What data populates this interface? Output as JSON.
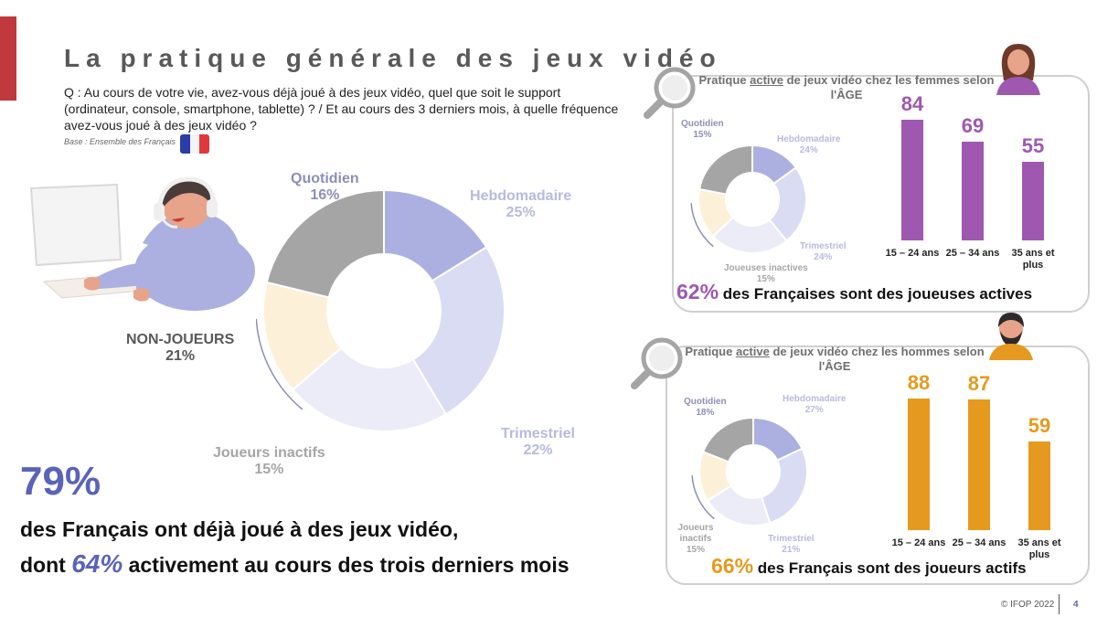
{
  "title": "La pratique générale des jeux vidéo",
  "question": "Q : Au cours de votre vie, avez-vous déjà joué à des jeux vidéo, quel que soit le support (ordinateur, console, smartphone, tablette) ? / Et au cours des 3 derniers mois, à quelle fréquence avez-vous joué à des jeux vidéo ?",
  "base": "Base : Ensemble des Français",
  "colors": {
    "accent_red": "#c0393c",
    "quotidien": "#abb0e0",
    "hebdomadaire": "#dadcf3",
    "trimestriel": "#ebecf8",
    "inactifs": "#fdf0d8",
    "non_joueurs": "#a5a5a5",
    "women": "#9e58b0",
    "men": "#e59a1f",
    "highlight": "#5a63b8"
  },
  "flag_colors": [
    "#2a3da6",
    "#f4f4f4",
    "#e0393b"
  ],
  "chart_data": [
    {
      "type": "pie",
      "id": "overall",
      "categories": [
        "Quotidien",
        "Hebdomadaire",
        "Trimestriel",
        "Joueurs inactifs",
        "NON-JOUEURS"
      ],
      "values": [
        16,
        25,
        22,
        15,
        21
      ],
      "labels": [
        "16%",
        "25%",
        "22%",
        "15%",
        "21%"
      ]
    },
    {
      "type": "pie",
      "id": "women",
      "title": "Pratique active de jeux vidéo chez les femmes selon l'ÂGE",
      "categories": [
        "Quotidien",
        "Hebdomadaire",
        "Trimestriel",
        "Joueuses inactives",
        ""
      ],
      "values": [
        15,
        24,
        24,
        15,
        22
      ],
      "labels": [
        "15%",
        "24%",
        "24%",
        "15%",
        ""
      ]
    },
    {
      "type": "bar",
      "id": "women_bars",
      "categories": [
        "15 – 24 ans",
        "25 – 34 ans",
        "35 ans et plus"
      ],
      "values": [
        84,
        69,
        55
      ],
      "ylim": [
        0,
        100
      ]
    },
    {
      "type": "pie",
      "id": "men",
      "title": "Pratique active de jeux vidéo chez les hommes selon l'ÂGE",
      "categories": [
        "Quotidien",
        "Hebdomadaire",
        "Trimestriel",
        "Joueurs inactifs",
        ""
      ],
      "values": [
        18,
        27,
        21,
        15,
        19
      ],
      "labels": [
        "18%",
        "27%",
        "21%",
        "15%",
        ""
      ]
    },
    {
      "type": "bar",
      "id": "men_bars",
      "categories": [
        "15 – 24 ans",
        "25 – 34 ans",
        "35 ans et plus"
      ],
      "values": [
        88,
        87,
        59
      ],
      "ylim": [
        0,
        100
      ]
    }
  ],
  "main": {
    "labels": {
      "quotidien": {
        "name": "Quotidien",
        "pct": "16%"
      },
      "hebdomadaire": {
        "name": "Hebdomadaire",
        "pct": "25%"
      },
      "trimestriel": {
        "name": "Trimestriel",
        "pct": "22%"
      },
      "inactifs": {
        "name": "Joueurs inactifs",
        "pct": "15%"
      },
      "non_joueurs": {
        "name": "NON-JOUEURS",
        "pct": "21%"
      }
    }
  },
  "women": {
    "title_pre": "Pratique ",
    "title_u": "active",
    "title_post": " de jeux vidéo chez les femmes selon l'ÂGE",
    "labels": {
      "quotidien": {
        "name": "Quotidien",
        "pct": "15%"
      },
      "hebdomadaire": {
        "name": "Hebdomadaire",
        "pct": "24%"
      },
      "trimestriel": {
        "name": "Trimestriel",
        "pct": "24%"
      },
      "inactifs": {
        "name": "Joueuses inactives",
        "pct": "15%"
      }
    },
    "bars": [
      {
        "value": "84",
        "cat": "15 – 24 ans"
      },
      {
        "value": "69",
        "cat": "25 – 34 ans"
      },
      {
        "value": "55",
        "cat": "35 ans et plus"
      }
    ],
    "summary_pct": "62%",
    "summary_text": " des Françaises sont des joueuses actives"
  },
  "men": {
    "title_pre": "Pratique ",
    "title_u": "active",
    "title_post": " de jeux vidéo chez les hommes selon l'ÂGE",
    "labels": {
      "quotidien": {
        "name": "Quotidien",
        "pct": "18%"
      },
      "hebdomadaire": {
        "name": "Hebdomadaire",
        "pct": "27%"
      },
      "trimestriel": {
        "name": "Trimestriel",
        "pct": "21%"
      },
      "inactifs": {
        "name": "Joueurs inactifs",
        "pct": "15%"
      }
    },
    "bars": [
      {
        "value": "88",
        "cat": "15 – 24 ans"
      },
      {
        "value": "87",
        "cat": "25 – 34 ans"
      },
      {
        "value": "59",
        "cat": "35 ans et plus"
      }
    ],
    "summary_pct": "66%",
    "summary_text": " des Français sont des joueurs actifs"
  },
  "headline": {
    "pct": "79%",
    "line1": "des Français ont déjà joué à des jeux vidéo,",
    "line2_pre": "dont ",
    "line2_pct": "64%",
    "line2_post": " activement au cours des trois derniers mois"
  },
  "footer": {
    "copyright": "© IFOP 2022",
    "page_number": "4"
  }
}
